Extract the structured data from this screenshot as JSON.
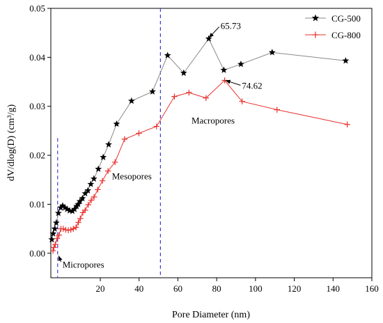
{
  "chart_data": {
    "type": "line",
    "xlabel": "Pore Diameter (nm)",
    "ylabel": "dV/dlog(D) (cm³/g)",
    "xlim": [
      -5.5,
      160
    ],
    "ylim": [
      -0.005,
      0.05
    ],
    "x_ticks": [
      20,
      40,
      60,
      80,
      100,
      120,
      140,
      160
    ],
    "y_ticks": [
      0.0,
      0.01,
      0.02,
      0.03,
      0.04,
      0.05
    ],
    "y_tick_labels": [
      "0.00",
      "0.01",
      "0.02",
      "0.03",
      "0.04",
      "0.05"
    ],
    "grid": false,
    "legend": "top-right",
    "series": [
      {
        "name": "CG-500",
        "marker": "star",
        "color": "#000000",
        "line_color": "#888888",
        "points": [
          [
            -5.0,
            0.0028
          ],
          [
            -4.3,
            0.004
          ],
          [
            -3.5,
            0.005
          ],
          [
            -2.7,
            0.0062
          ],
          [
            -1.6,
            0.0082
          ],
          [
            -0.4,
            0.0093
          ],
          [
            0.6,
            0.0097
          ],
          [
            1.8,
            0.0093
          ],
          [
            2.9,
            0.009
          ],
          [
            4.2,
            0.0087
          ],
          [
            5.6,
            0.0086
          ],
          [
            6.7,
            0.009
          ],
          [
            7.8,
            0.0096
          ],
          [
            8.6,
            0.01
          ],
          [
            9.5,
            0.0106
          ],
          [
            10.8,
            0.0112
          ],
          [
            12.2,
            0.0122
          ],
          [
            13.6,
            0.0128
          ],
          [
            15.1,
            0.0141
          ],
          [
            16.7,
            0.0152
          ],
          [
            19.0,
            0.0172
          ],
          [
            21.5,
            0.0196
          ],
          [
            24.3,
            0.0222
          ],
          [
            28.4,
            0.0264
          ],
          [
            36.1,
            0.0311
          ],
          [
            46.9,
            0.033
          ],
          [
            54.7,
            0.0404
          ],
          [
            63.0,
            0.0368
          ],
          [
            75.9,
            0.0438
          ],
          [
            83.7,
            0.0374
          ],
          [
            92.5,
            0.0386
          ],
          [
            108.6,
            0.041
          ],
          [
            146.5,
            0.0393
          ]
        ]
      },
      {
        "name": "CG-800",
        "marker": "plus",
        "color": "#e8302c",
        "line_color": "#e8302c",
        "points": [
          [
            -4.4,
            0.0005
          ],
          [
            -3.9,
            0.0012
          ],
          [
            -3.2,
            0.0018
          ],
          [
            -2.3,
            0.003
          ],
          [
            -1.3,
            0.0037
          ],
          [
            -0.3,
            0.005
          ],
          [
            0.9,
            0.005
          ],
          [
            2.2,
            0.0048
          ],
          [
            3.5,
            0.0047
          ],
          [
            4.8,
            0.0048
          ],
          [
            6.1,
            0.005
          ],
          [
            7.5,
            0.0053
          ],
          [
            8.7,
            0.0063
          ],
          [
            9.7,
            0.0071
          ],
          [
            11.0,
            0.0083
          ],
          [
            12.2,
            0.0088
          ],
          [
            13.8,
            0.0099
          ],
          [
            15.3,
            0.0108
          ],
          [
            16.8,
            0.0115
          ],
          [
            18.7,
            0.013
          ],
          [
            21.1,
            0.0148
          ],
          [
            24.0,
            0.0168
          ],
          [
            27.6,
            0.0186
          ],
          [
            32.5,
            0.0233
          ],
          [
            39.9,
            0.0245
          ],
          [
            49.0,
            0.0259
          ],
          [
            58.2,
            0.032
          ],
          [
            65.7,
            0.0328
          ],
          [
            74.5,
            0.0317
          ],
          [
            84.1,
            0.0353
          ],
          [
            93.1,
            0.031
          ],
          [
            111.1,
            0.0293
          ],
          [
            147.3,
            0.0263
          ]
        ]
      }
    ],
    "vertical_lines": [
      {
        "x": -2.0,
        "ymax": 0.0235,
        "color": "#3a3ad8",
        "style": "dashed"
      },
      {
        "x": 51.0,
        "ymax": 0.05,
        "color": "#3a3ad8",
        "style": "dashed"
      }
    ],
    "annotations": [
      {
        "text": "65.73",
        "x": 76.0,
        "y": 0.044,
        "text_x": 82.0,
        "text_y": 0.0465,
        "color": "#000000"
      },
      {
        "text": "74.62",
        "x": 84.5,
        "y": 0.0353,
        "text_x": 93.0,
        "text_y": 0.0343,
        "color": "#000000"
      },
      {
        "text": "Micropores",
        "x": -1.5,
        "y": -0.0005,
        "text_x": 0.5,
        "text_y": -0.0022,
        "color": "#000000"
      },
      {
        "text": "Mesopores",
        "x": null,
        "y": null,
        "text_x": 26.0,
        "text_y": 0.0158,
        "color": "#000000"
      },
      {
        "text": "Macropores",
        "x": null,
        "y": null,
        "text_x": 67.0,
        "text_y": 0.0272,
        "color": "#000000"
      }
    ]
  }
}
